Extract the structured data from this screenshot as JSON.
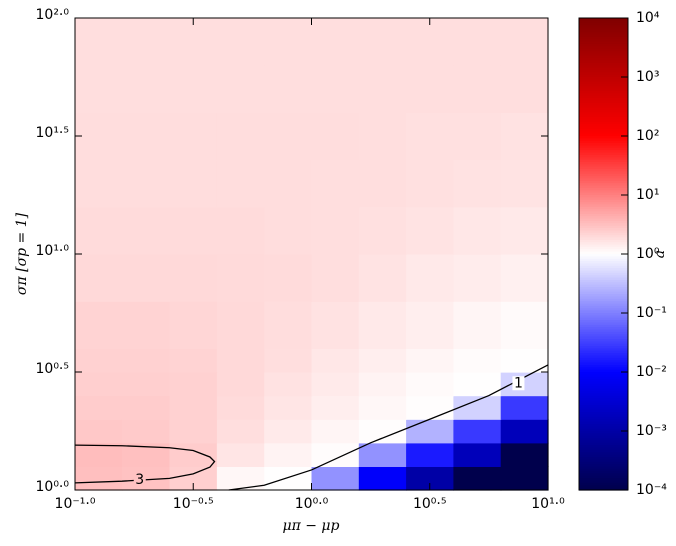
{
  "chart_data": {
    "type": "heatmap",
    "x_label": "μπ − μp",
    "y_label": "σπ [σp = 1]",
    "colorbar_label": "a",
    "xscale": "log",
    "yscale": "log",
    "colorscale": "log",
    "xlim": [
      0.1,
      10
    ],
    "ylim": [
      1,
      100
    ],
    "clim": [
      0.0001,
      10000
    ],
    "xticks": [
      {
        "value": 0.1,
        "label": "10⁻¹·⁰"
      },
      {
        "value": 0.3162,
        "label": "10⁻⁰·⁵"
      },
      {
        "value": 1,
        "label": "10⁰·⁰"
      },
      {
        "value": 3.162,
        "label": "10⁰·⁵"
      },
      {
        "value": 10,
        "label": "10¹·⁰"
      }
    ],
    "yticks": [
      {
        "value": 1,
        "label": "10⁰·⁰"
      },
      {
        "value": 3.162,
        "label": "10⁰·⁵"
      },
      {
        "value": 10,
        "label": "10¹·⁰"
      },
      {
        "value": 31.62,
        "label": "10¹·⁵"
      },
      {
        "value": 100,
        "label": "10²·⁰"
      }
    ],
    "cticks": [
      {
        "value": 0.0001,
        "label": "10⁻⁴"
      },
      {
        "value": 0.001,
        "label": "10⁻³"
      },
      {
        "value": 0.01,
        "label": "10⁻²"
      },
      {
        "value": 0.1,
        "label": "10⁻¹"
      },
      {
        "value": 1,
        "label": "10⁰"
      },
      {
        "value": 10,
        "label": "10¹"
      },
      {
        "value": 100,
        "label": "10²"
      },
      {
        "value": 1000,
        "label": "10³"
      },
      {
        "value": 10000,
        "label": "10⁴"
      }
    ],
    "colormap": [
      "#00004c",
      "#0000ff",
      "#ffffff",
      "#ff0000",
      "#800000"
    ],
    "x_edges": [
      0.1,
      0.158,
      0.251,
      0.398,
      0.631,
      1,
      1.585,
      2.512,
      3.981,
      6.31,
      10
    ],
    "y_edges": [
      1,
      1.259,
      1.585,
      1.995,
      2.512,
      3.162,
      3.981,
      6.31,
      10,
      15.85,
      25.12,
      39.81,
      63.1,
      100
    ],
    "values": [
      [
        3.2,
        3.0,
        2.4,
        1.15,
        1.02,
        0.14,
        0.009,
        0.001,
        0.0001,
        0.0001
      ],
      [
        3.3,
        3.1,
        2.5,
        1.6,
        1.25,
        1.05,
        0.14,
        0.016,
        0.0017,
        0.0001
      ],
      [
        2.7,
        2.6,
        2.3,
        1.8,
        1.45,
        1.2,
        1.03,
        0.25,
        0.028,
        0.0017
      ],
      [
        2.5,
        2.5,
        2.3,
        1.9,
        1.6,
        1.35,
        1.15,
        1.03,
        0.44,
        0.028
      ],
      [
        2.4,
        2.4,
        2.3,
        2.0,
        1.7,
        1.45,
        1.25,
        1.1,
        1.02,
        0.44
      ],
      [
        2.3,
        2.3,
        2.2,
        2.0,
        1.8,
        1.55,
        1.35,
        1.2,
        1.08,
        1.01
      ],
      [
        2.2,
        2.2,
        2.1,
        2.0,
        1.85,
        1.7,
        1.5,
        1.35,
        1.2,
        1.1
      ],
      [
        2.0,
        2.0,
        2.0,
        1.95,
        1.9,
        1.8,
        1.65,
        1.5,
        1.4,
        1.3
      ],
      [
        1.9,
        1.9,
        1.9,
        1.9,
        1.85,
        1.8,
        1.75,
        1.65,
        1.55,
        1.5
      ],
      [
        1.85,
        1.85,
        1.85,
        1.85,
        1.85,
        1.8,
        1.8,
        1.75,
        1.7,
        1.65
      ],
      [
        1.85,
        1.85,
        1.85,
        1.85,
        1.85,
        1.85,
        1.8,
        1.75,
        1.75,
        1.7
      ],
      [
        1.8,
        1.8,
        1.8,
        1.8,
        1.8,
        1.8,
        1.8,
        1.8,
        1.8,
        1.8
      ],
      [
        1.8,
        1.8,
        1.8,
        1.8,
        1.8,
        1.8,
        1.8,
        1.8,
        1.8,
        1.8
      ]
    ],
    "contours": [
      {
        "level": 3,
        "x": [
          0.1,
          0.158,
          0.251,
          0.316,
          0.372,
          0.389,
          0.372,
          0.316,
          0.251,
          0.158,
          0.1
        ],
        "y": [
          1.549,
          1.54,
          1.51,
          1.47,
          1.38,
          1.32,
          1.25,
          1.17,
          1.12,
          1.09,
          1.072
        ]
      },
      {
        "level": 1,
        "x": [
          0.447,
          0.631,
          1,
          1.778,
          3.162,
          5.623,
          10
        ],
        "y": [
          1,
          1.047,
          1.216,
          1.585,
          1.995,
          2.512,
          3.388
        ]
      }
    ],
    "contour_color": "#000000"
  }
}
